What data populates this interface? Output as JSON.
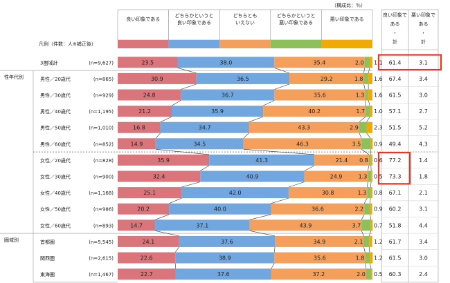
{
  "chart_data": {
    "type": "stacked-bar-horizontal",
    "unit_note": "（構成比：％）",
    "legend_caption": "凡例（件数：人※補正後）",
    "series": [
      {
        "name": "良い印象である",
        "color": "#d9757b"
      },
      {
        "name": "どちらかというと良い印象である",
        "color": "#72a6df"
      },
      {
        "name": "どちらとも いえない",
        "color": "#f4a05c"
      },
      {
        "name": "どちらかというと悪い印象である",
        "color": "#8dc05a"
      },
      {
        "name": "悪い印象である",
        "color": "#f0aa00"
      }
    ],
    "series_header_lines": [
      [
        "良い印象である"
      ],
      [
        "どちらかというと",
        "良い印象である"
      ],
      [
        "どちらとも",
        "いえない"
      ],
      [
        "どちらかというと",
        "悪い印象である"
      ],
      [
        "悪い印象である"
      ]
    ],
    "total_headers": [
      [
        "良い印象で",
        "ある",
        "・",
        "計"
      ],
      [
        "悪い印象で",
        "ある",
        "・",
        "計"
      ]
    ],
    "groups": [
      {
        "label": "",
        "rows": [
          0
        ]
      },
      {
        "label": "性年代別",
        "rows": [
          1,
          2,
          3,
          4,
          5,
          6,
          7,
          8,
          9,
          10
        ]
      },
      {
        "label": "圏域別",
        "rows": [
          11,
          12,
          13
        ]
      }
    ],
    "rows": [
      {
        "label": "3圏域計",
        "n": "(n=9,627)",
        "values": [
          23.5,
          38.0,
          35.4,
          2.0,
          1.1
        ],
        "good_total": "61.4",
        "bad_total": "3.1",
        "highlight": true
      },
      {
        "label": "男性／20歳代",
        "n": "(n=865)",
        "values": [
          30.9,
          36.5,
          29.2,
          1.8,
          1.6
        ],
        "good_total": "67.4",
        "bad_total": "3.4"
      },
      {
        "label": "男性／30歳代",
        "n": "(n=929)",
        "values": [
          24.8,
          36.7,
          35.6,
          1.3,
          1.6
        ],
        "good_total": "61.5",
        "bad_total": "3.0"
      },
      {
        "label": "男性／40歳代",
        "n": "(n=1,195)",
        "values": [
          21.2,
          35.9,
          40.2,
          1.7,
          1.0
        ],
        "good_total": "57.1",
        "bad_total": "2.7"
      },
      {
        "label": "男性／50歳代",
        "n": "(n=1,010)",
        "values": [
          16.8,
          34.7,
          43.3,
          2.9,
          2.3
        ],
        "good_total": "51.5",
        "bad_total": "5.2"
      },
      {
        "label": "男性／60歳代",
        "n": "(n=852)",
        "values": [
          14.9,
          34.5,
          46.3,
          3.5,
          0.9
        ],
        "good_total": "49.4",
        "bad_total": "4.3"
      },
      {
        "label": "女性／20歳代",
        "n": "(n=828)",
        "values": [
          35.9,
          41.3,
          21.4,
          0.8,
          0.6
        ],
        "good_total": "77.2",
        "bad_total": "1.4",
        "highlight": true
      },
      {
        "label": "女性／30歳代",
        "n": "(n=900)",
        "values": [
          32.4,
          40.9,
          24.9,
          1.3,
          0.5
        ],
        "good_total": "73.3",
        "bad_total": "1.8",
        "highlight": true
      },
      {
        "label": "女性／40歳代",
        "n": "(n=1,168)",
        "values": [
          25.1,
          42.0,
          30.8,
          1.3,
          0.8
        ],
        "good_total": "67.1",
        "bad_total": "2.1"
      },
      {
        "label": "女性／50歳代",
        "n": "(n=986)",
        "values": [
          20.2,
          40.0,
          36.6,
          2.2,
          0.9
        ],
        "good_total": "60.2",
        "bad_total": "3.1"
      },
      {
        "label": "女性／60歳代",
        "n": "(n=893)",
        "values": [
          14.7,
          37.1,
          43.9,
          3.7,
          0.7
        ],
        "good_total": "51.8",
        "bad_total": "4.4"
      },
      {
        "label": "首都圏",
        "n": "(n=5,545)",
        "values": [
          24.1,
          37.6,
          34.9,
          2.1,
          1.2
        ],
        "good_total": "61.7",
        "bad_total": "3.4"
      },
      {
        "label": "関西圏",
        "n": "(n=2,615)",
        "values": [
          22.6,
          38.9,
          35.6,
          1.8,
          1.2
        ],
        "good_total": "61.5",
        "bad_total": "3.0"
      },
      {
        "label": "東海圏",
        "n": "(n=1,467)",
        "values": [
          22.7,
          37.6,
          37.2,
          2.0,
          0.5
        ],
        "good_total": "60.3",
        "bad_total": "2.4"
      }
    ]
  }
}
